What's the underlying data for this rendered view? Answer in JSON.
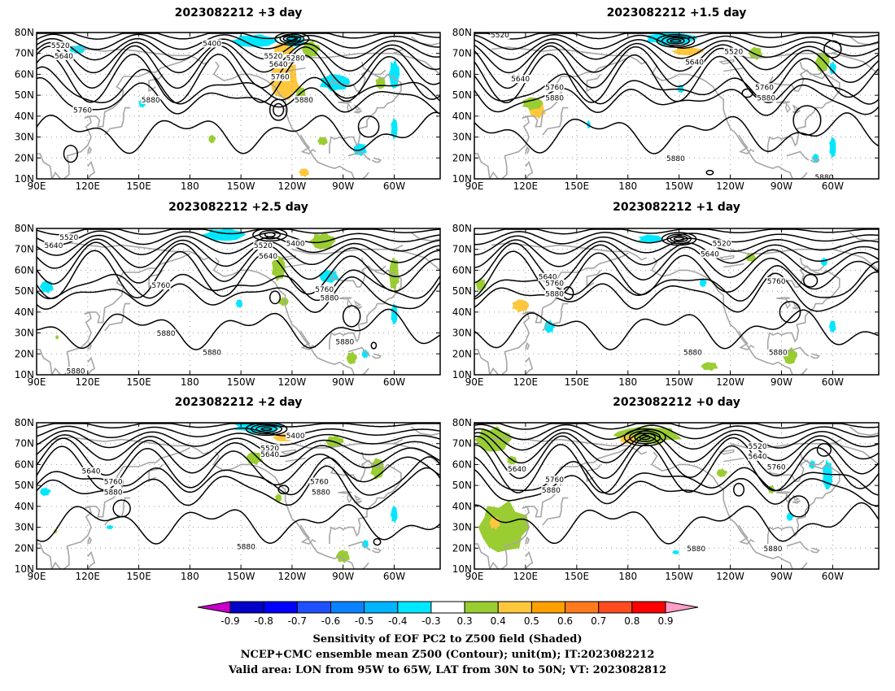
{
  "panels": [
    {
      "id": "p1",
      "title": "2023082212 +3 day",
      "labels": [
        {
          "text": "5520",
          "lon": 104,
          "lat": 73
        },
        {
          "text": "5640",
          "lon": 106,
          "lat": 68
        },
        {
          "text": "5400",
          "lon": -167,
          "lat": 74
        },
        {
          "text": "5520",
          "lon": -131,
          "lat": 68
        },
        {
          "text": "5280",
          "lon": -118,
          "lat": 67
        },
        {
          "text": "5640",
          "lon": -128,
          "lat": 64
        },
        {
          "text": "5760",
          "lon": -127,
          "lat": 58
        },
        {
          "text": "5880",
          "lon": -113,
          "lat": 47
        },
        {
          "text": "5760",
          "lon": 117,
          "lat": 42
        },
        {
          "text": "5880",
          "lon": 157,
          "lat": 47
        }
      ],
      "shades": [
        {
          "color": "#ffc83c",
          "lon": -124,
          "lat": 57,
          "rx": 9,
          "ry": 9
        },
        {
          "color": "#ffc83c",
          "lon": -125,
          "lat": 72,
          "rx": 6,
          "ry": 3
        },
        {
          "color": "#00e8ff",
          "lon": -142,
          "lat": 76,
          "rx": 13,
          "ry": 3
        },
        {
          "color": "#00e8ff",
          "lon": -118,
          "lat": 76,
          "rx": 6,
          "ry": 3
        },
        {
          "color": "#00e8ff",
          "lon": -95,
          "lat": 56,
          "rx": 9,
          "ry": 4
        },
        {
          "color": "#00e8ff",
          "lon": -60,
          "lat": 60,
          "rx": 3,
          "ry": 7
        },
        {
          "color": "#00e8ff",
          "lon": -80,
          "lat": 24,
          "rx": 4,
          "ry": 3
        },
        {
          "color": "#00e8ff",
          "lon": -60,
          "lat": 34,
          "rx": 2,
          "ry": 5
        },
        {
          "color": "#00e8ff",
          "lon": 114,
          "lat": 72,
          "rx": 5,
          "ry": 2
        },
        {
          "color": "#00e8ff",
          "lon": 152,
          "lat": 46,
          "rx": 2,
          "ry": 2
        },
        {
          "color": "#9acd32",
          "lon": -115,
          "lat": 51,
          "rx": 3,
          "ry": 3
        },
        {
          "color": "#9acd32",
          "lon": -109,
          "lat": 72,
          "rx": 5,
          "ry": 4
        },
        {
          "color": "#9acd32",
          "lon": -102,
          "lat": 28,
          "rx": 3,
          "ry": 2
        },
        {
          "color": "#9acd32",
          "lon": -68,
          "lat": 56,
          "rx": 3,
          "ry": 3
        },
        {
          "color": "#9acd32",
          "lon": -167,
          "lat": 29,
          "rx": 2,
          "ry": 2
        },
        {
          "color": "#ffc83c",
          "lon": -113,
          "lat": 13,
          "rx": 3,
          "ry": 2
        }
      ]
    },
    {
      "id": "p2",
      "title": "2023082212 +1.5 day",
      "labels": [
        {
          "text": "5520",
          "lon": 105,
          "lat": 78
        },
        {
          "text": "5640",
          "lon": 117,
          "lat": 57
        },
        {
          "text": "5760",
          "lon": 137,
          "lat": 53
        },
        {
          "text": "5880",
          "lon": 137,
          "lat": 48
        },
        {
          "text": "5640",
          "lon": -141,
          "lat": 65
        },
        {
          "text": "5520",
          "lon": -118,
          "lat": 70
        },
        {
          "text": "5760",
          "lon": -100,
          "lat": 53
        },
        {
          "text": "5880",
          "lon": -99,
          "lat": 48
        },
        {
          "text": "5880",
          "lon": -152,
          "lat": 19
        },
        {
          "text": "5880",
          "lon": -65,
          "lat": 10
        }
      ],
      "shades": [
        {
          "color": "#00e8ff",
          "lon": -155,
          "lat": 77,
          "rx": 15,
          "ry": 3
        },
        {
          "color": "#ffc83c",
          "lon": -145,
          "lat": 71,
          "rx": 9,
          "ry": 2
        },
        {
          "color": "#ffc83c",
          "lon": 127,
          "lat": 43,
          "rx": 5,
          "ry": 4
        },
        {
          "color": "#9acd32",
          "lon": 124,
          "lat": 46,
          "rx": 6,
          "ry": 3
        },
        {
          "color": "#9acd32",
          "lon": -66,
          "lat": 66,
          "rx": 4,
          "ry": 5
        },
        {
          "color": "#9acd32",
          "lon": -105,
          "lat": 70,
          "rx": 4,
          "ry": 3
        },
        {
          "color": "#00e8ff",
          "lon": -60,
          "lat": 25,
          "rx": 2,
          "ry": 5
        },
        {
          "color": "#00e8ff",
          "lon": -60,
          "lat": 63,
          "rx": 2,
          "ry": 3
        },
        {
          "color": "#00e8ff",
          "lon": -149,
          "lat": 53,
          "rx": 2,
          "ry": 2
        },
        {
          "color": "#00e8ff",
          "lon": -70,
          "lat": 20,
          "rx": 2,
          "ry": 2
        },
        {
          "color": "#00e8ff",
          "lon": 157,
          "lat": 36,
          "rx": 1,
          "ry": 2
        }
      ]
    },
    {
      "id": "p3",
      "title": "2023082212 +2.5 day",
      "labels": [
        {
          "text": "5520",
          "lon": 109,
          "lat": 75
        },
        {
          "text": "5640",
          "lon": 100,
          "lat": 71
        },
        {
          "text": "5520",
          "lon": -137,
          "lat": 71
        },
        {
          "text": "5400",
          "lon": -118,
          "lat": 72
        },
        {
          "text": "5640",
          "lon": -134,
          "lat": 66
        },
        {
          "text": "5760",
          "lon": 163,
          "lat": 52
        },
        {
          "text": "5760",
          "lon": -101,
          "lat": 50
        },
        {
          "text": "5880",
          "lon": -98,
          "lat": 46
        },
        {
          "text": "5880",
          "lon": 166,
          "lat": 29
        },
        {
          "text": "5880",
          "lon": -167,
          "lat": 20
        },
        {
          "text": "5880",
          "lon": -89,
          "lat": 25
        },
        {
          "text": "5880",
          "lon": 113,
          "lat": 11
        }
      ],
      "shades": [
        {
          "color": "#00e8ff",
          "lon": -160,
          "lat": 77,
          "rx": 12,
          "ry": 3
        },
        {
          "color": "#00e8ff",
          "lon": -98,
          "lat": 57,
          "rx": 6,
          "ry": 3
        },
        {
          "color": "#9acd32",
          "lon": -128,
          "lat": 61,
          "rx": 4,
          "ry": 6
        },
        {
          "color": "#9acd32",
          "lon": -102,
          "lat": 74,
          "rx": 7,
          "ry": 4
        },
        {
          "color": "#9acd32",
          "lon": -60,
          "lat": 58,
          "rx": 3,
          "ry": 8
        },
        {
          "color": "#9acd32",
          "lon": -125,
          "lat": 45,
          "rx": 3,
          "ry": 2
        },
        {
          "color": "#9acd32",
          "lon": -85,
          "lat": 18,
          "rx": 3,
          "ry": 3
        },
        {
          "color": "#00e8ff",
          "lon": 96,
          "lat": 52,
          "rx": 4,
          "ry": 3
        },
        {
          "color": "#00e8ff",
          "lon": -60,
          "lat": 39,
          "rx": 2,
          "ry": 5
        },
        {
          "color": "#00e8ff",
          "lon": -77,
          "lat": 20,
          "rx": 2,
          "ry": 2
        },
        {
          "color": "#00e8ff",
          "lon": -151,
          "lat": 44,
          "rx": 2,
          "ry": 2
        },
        {
          "color": "#9acd32",
          "lon": 102,
          "lat": 28,
          "rx": 1,
          "ry": 1
        }
      ]
    },
    {
      "id": "p4",
      "title": "2023082212 +1 day",
      "labels": [
        {
          "text": "5520",
          "lon": -125,
          "lat": 72
        },
        {
          "text": "5640",
          "lon": -132,
          "lat": 67
        },
        {
          "text": "5640",
          "lon": 133,
          "lat": 56
        },
        {
          "text": "5760",
          "lon": 137,
          "lat": 53
        },
        {
          "text": "5880",
          "lon": 137,
          "lat": 48
        },
        {
          "text": "5760",
          "lon": -93,
          "lat": 54
        },
        {
          "text": "5880",
          "lon": -142,
          "lat": 20
        },
        {
          "text": "5880",
          "lon": -92,
          "lat": 20
        }
      ],
      "shades": [
        {
          "color": "#9acd32",
          "lon": 94,
          "lat": 53,
          "rx": 3,
          "ry": 3
        },
        {
          "color": "#ffc83c",
          "lon": 117,
          "lat": 43,
          "rx": 5,
          "ry": 3
        },
        {
          "color": "#9acd32",
          "lon": -85,
          "lat": 19,
          "rx": 4,
          "ry": 4
        },
        {
          "color": "#9acd32",
          "lon": -132,
          "lat": 14,
          "rx": 5,
          "ry": 2
        },
        {
          "color": "#00e8ff",
          "lon": -167,
          "lat": 75,
          "rx": 7,
          "ry": 2
        },
        {
          "color": "#00e8ff",
          "lon": -136,
          "lat": 54,
          "rx": 2,
          "ry": 2
        },
        {
          "color": "#00e8ff",
          "lon": -60,
          "lat": 33,
          "rx": 2,
          "ry": 3
        },
        {
          "color": "#00e8ff",
          "lon": -65,
          "lat": 64,
          "rx": 2,
          "ry": 2
        },
        {
          "color": "#00e8ff",
          "lon": 134,
          "lat": 33,
          "rx": 3,
          "ry": 3
        },
        {
          "color": "#9acd32",
          "lon": -108,
          "lat": 66,
          "rx": 3,
          "ry": 2
        }
      ]
    },
    {
      "id": "p5",
      "title": "2023082212 +2 day",
      "labels": [
        {
          "text": "5400",
          "lon": -118,
          "lat": 73
        },
        {
          "text": "5520",
          "lon": -133,
          "lat": 67
        },
        {
          "text": "5640",
          "lon": -133,
          "lat": 64
        },
        {
          "text": "5640",
          "lon": 122,
          "lat": 56
        },
        {
          "text": "5760",
          "lon": 135,
          "lat": 51
        },
        {
          "text": "5880",
          "lon": 135,
          "lat": 46
        },
        {
          "text": "5760",
          "lon": -104,
          "lat": 51
        },
        {
          "text": "5880",
          "lon": -103,
          "lat": 46
        },
        {
          "text": "5880",
          "lon": -147,
          "lat": 20
        }
      ],
      "shades": [
        {
          "color": "#00e8ff",
          "lon": -140,
          "lat": 78,
          "rx": 14,
          "ry": 3
        },
        {
          "color": "#ffc83c",
          "lon": -125,
          "lat": 73,
          "rx": 6,
          "ry": 2
        },
        {
          "color": "#9acd32",
          "lon": -142,
          "lat": 63,
          "rx": 5,
          "ry": 3
        },
        {
          "color": "#9acd32",
          "lon": -70,
          "lat": 58,
          "rx": 4,
          "ry": 5
        },
        {
          "color": "#9acd32",
          "lon": -95,
          "lat": 71,
          "rx": 5,
          "ry": 3
        },
        {
          "color": "#9acd32",
          "lon": -90,
          "lat": 16,
          "rx": 4,
          "ry": 3
        },
        {
          "color": "#9acd32",
          "lon": -128,
          "lat": 44,
          "rx": 2,
          "ry": 2
        },
        {
          "color": "#00e8ff",
          "lon": 95,
          "lat": 47,
          "rx": 3,
          "ry": 2
        },
        {
          "color": "#00e8ff",
          "lon": -60,
          "lat": 36,
          "rx": 2,
          "ry": 4
        },
        {
          "color": "#00e8ff",
          "lon": -77,
          "lat": 22,
          "rx": 2,
          "ry": 2
        },
        {
          "color": "#00e8ff",
          "lon": 133,
          "lat": 30,
          "rx": 2,
          "ry": 1
        },
        {
          "color": "#9acd32",
          "lon": 101,
          "lat": 28,
          "rx": 1,
          "ry": 1
        }
      ]
    },
    {
      "id": "p6",
      "title": "2023082212 +0 day",
      "labels": [
        {
          "text": "5520",
          "lon": -104,
          "lat": 68
        },
        {
          "text": "5640",
          "lon": -104,
          "lat": 63
        },
        {
          "text": "5760",
          "lon": -93,
          "lat": 58
        },
        {
          "text": "5640",
          "lon": 115,
          "lat": 57
        },
        {
          "text": "5760",
          "lon": 137,
          "lat": 52
        },
        {
          "text": "5880",
          "lon": 135,
          "lat": 47
        },
        {
          "text": "5880",
          "lon": -140,
          "lat": 19
        },
        {
          "text": "5880",
          "lon": -95,
          "lat": 19
        }
      ],
      "shades": [
        {
          "color": "#9acd32",
          "lon": 101,
          "lat": 72,
          "rx": 10,
          "ry": 6
        },
        {
          "color": "#9acd32",
          "lon": -168,
          "lat": 74,
          "rx": 20,
          "ry": 4
        },
        {
          "color": "#ffc83c",
          "lon": -180,
          "lat": 72,
          "rx": 5,
          "ry": 2
        },
        {
          "color": "#9acd32",
          "lon": 107,
          "lat": 30,
          "rx": 14,
          "ry": 12
        },
        {
          "color": "#ffc83c",
          "lon": 102,
          "lat": 32,
          "rx": 3,
          "ry": 3
        },
        {
          "color": "#9acd32",
          "lon": 112,
          "lat": 62,
          "rx": 3,
          "ry": 2
        },
        {
          "color": "#9acd32",
          "lon": -125,
          "lat": 56,
          "rx": 3,
          "ry": 2
        },
        {
          "color": "#9acd32",
          "lon": -96,
          "lat": 48,
          "rx": 2,
          "ry": 2
        },
        {
          "color": "#00e8ff",
          "lon": -63,
          "lat": 55,
          "rx": 3,
          "ry": 7
        },
        {
          "color": "#00e8ff",
          "lon": -85,
          "lat": 35,
          "rx": 2,
          "ry": 2
        },
        {
          "color": "#00e8ff",
          "lon": -152,
          "lat": 18,
          "rx": 2,
          "ry": 1
        },
        {
          "color": "#00e8ff",
          "lon": -72,
          "lat": 60,
          "rx": 2,
          "ry": 2
        }
      ]
    }
  ],
  "axes": {
    "lon_ticks": [
      "90E",
      "120E",
      "150E",
      "180",
      "150W",
      "120W",
      "90W",
      "60W"
    ],
    "lat_ticks": [
      "10N",
      "20N",
      "30N",
      "40N",
      "50N",
      "60N",
      "70N",
      "80N"
    ]
  },
  "colorbar": {
    "labels": [
      "-0.9",
      "-0.8",
      "-0.7",
      "-0.6",
      "-0.5",
      "-0.4",
      "-0.3",
      "0.3",
      "0.4",
      "0.5",
      "0.6",
      "0.7",
      "0.8",
      "0.9"
    ],
    "colors": [
      "#0000c8",
      "#0000ff",
      "#1e50ff",
      "#0a82ff",
      "#00b4ff",
      "#00e8ff",
      "#ffffff",
      "#9acd32",
      "#ffc83c",
      "#ffa000",
      "#ff7a1e",
      "#ff4b1e",
      "#ff0000"
    ],
    "low_end_color": "#c800c8",
    "high_end_color": "#ff9ec8"
  },
  "caption": {
    "line1": "Sensitivity of EOF PC2 to Z500 field (Shaded)",
    "line2": "NCEP+CMC ensemble mean Z500 (Contour); unit(m); IT:2023082212",
    "line3": "Valid area: LON from 95W to 65W, LAT from 30N to 50N; VT: 2023082812"
  }
}
